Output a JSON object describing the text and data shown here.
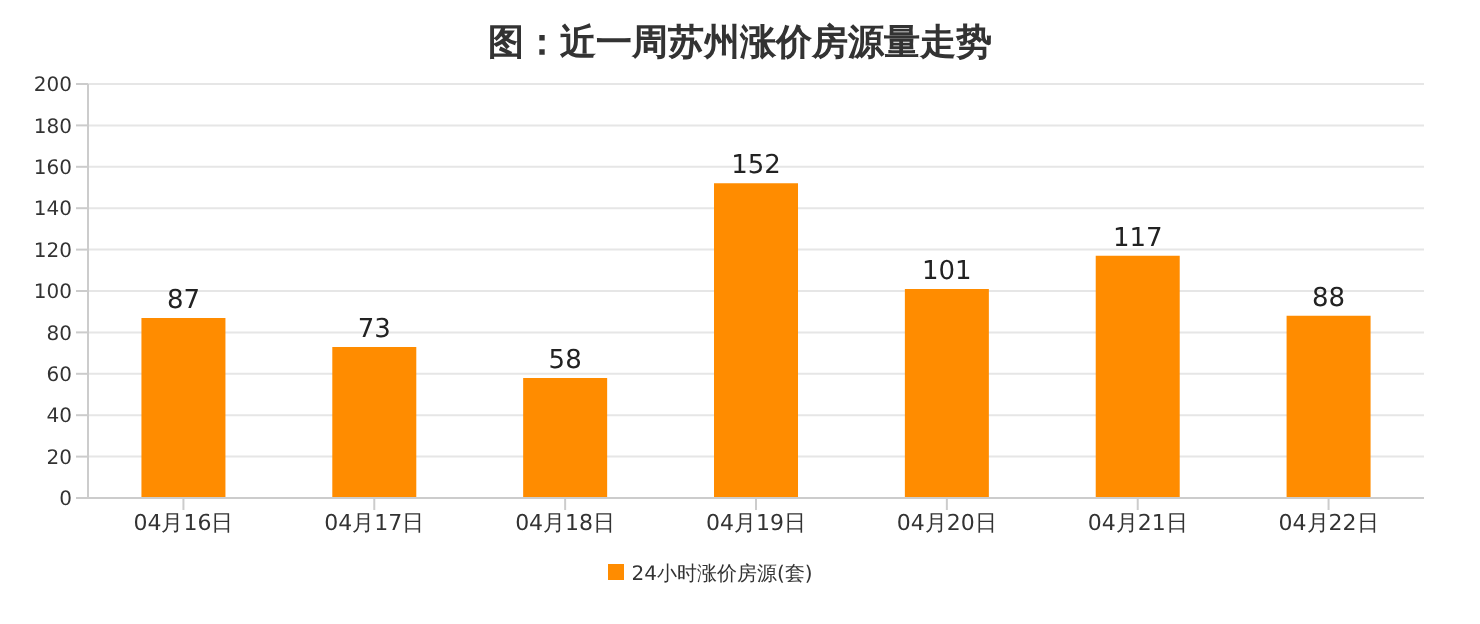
{
  "chart_data": {
    "type": "bar",
    "title": "图：近一周苏州涨价房源量走势",
    "categories": [
      "04月16日",
      "04月17日",
      "04月18日",
      "04月19日",
      "04月20日",
      "04月21日",
      "04月22日"
    ],
    "series": [
      {
        "name": "24小时涨价房源(套)",
        "color": "#ff8c00",
        "values": [
          87,
          73,
          58,
          152,
          101,
          117,
          88
        ]
      }
    ],
    "ylim": [
      0,
      200
    ],
    "yticks": [
      0,
      20,
      40,
      60,
      80,
      100,
      120,
      140,
      160,
      180,
      200
    ],
    "grid": "y",
    "legend": "bottom",
    "data_labels": true
  }
}
